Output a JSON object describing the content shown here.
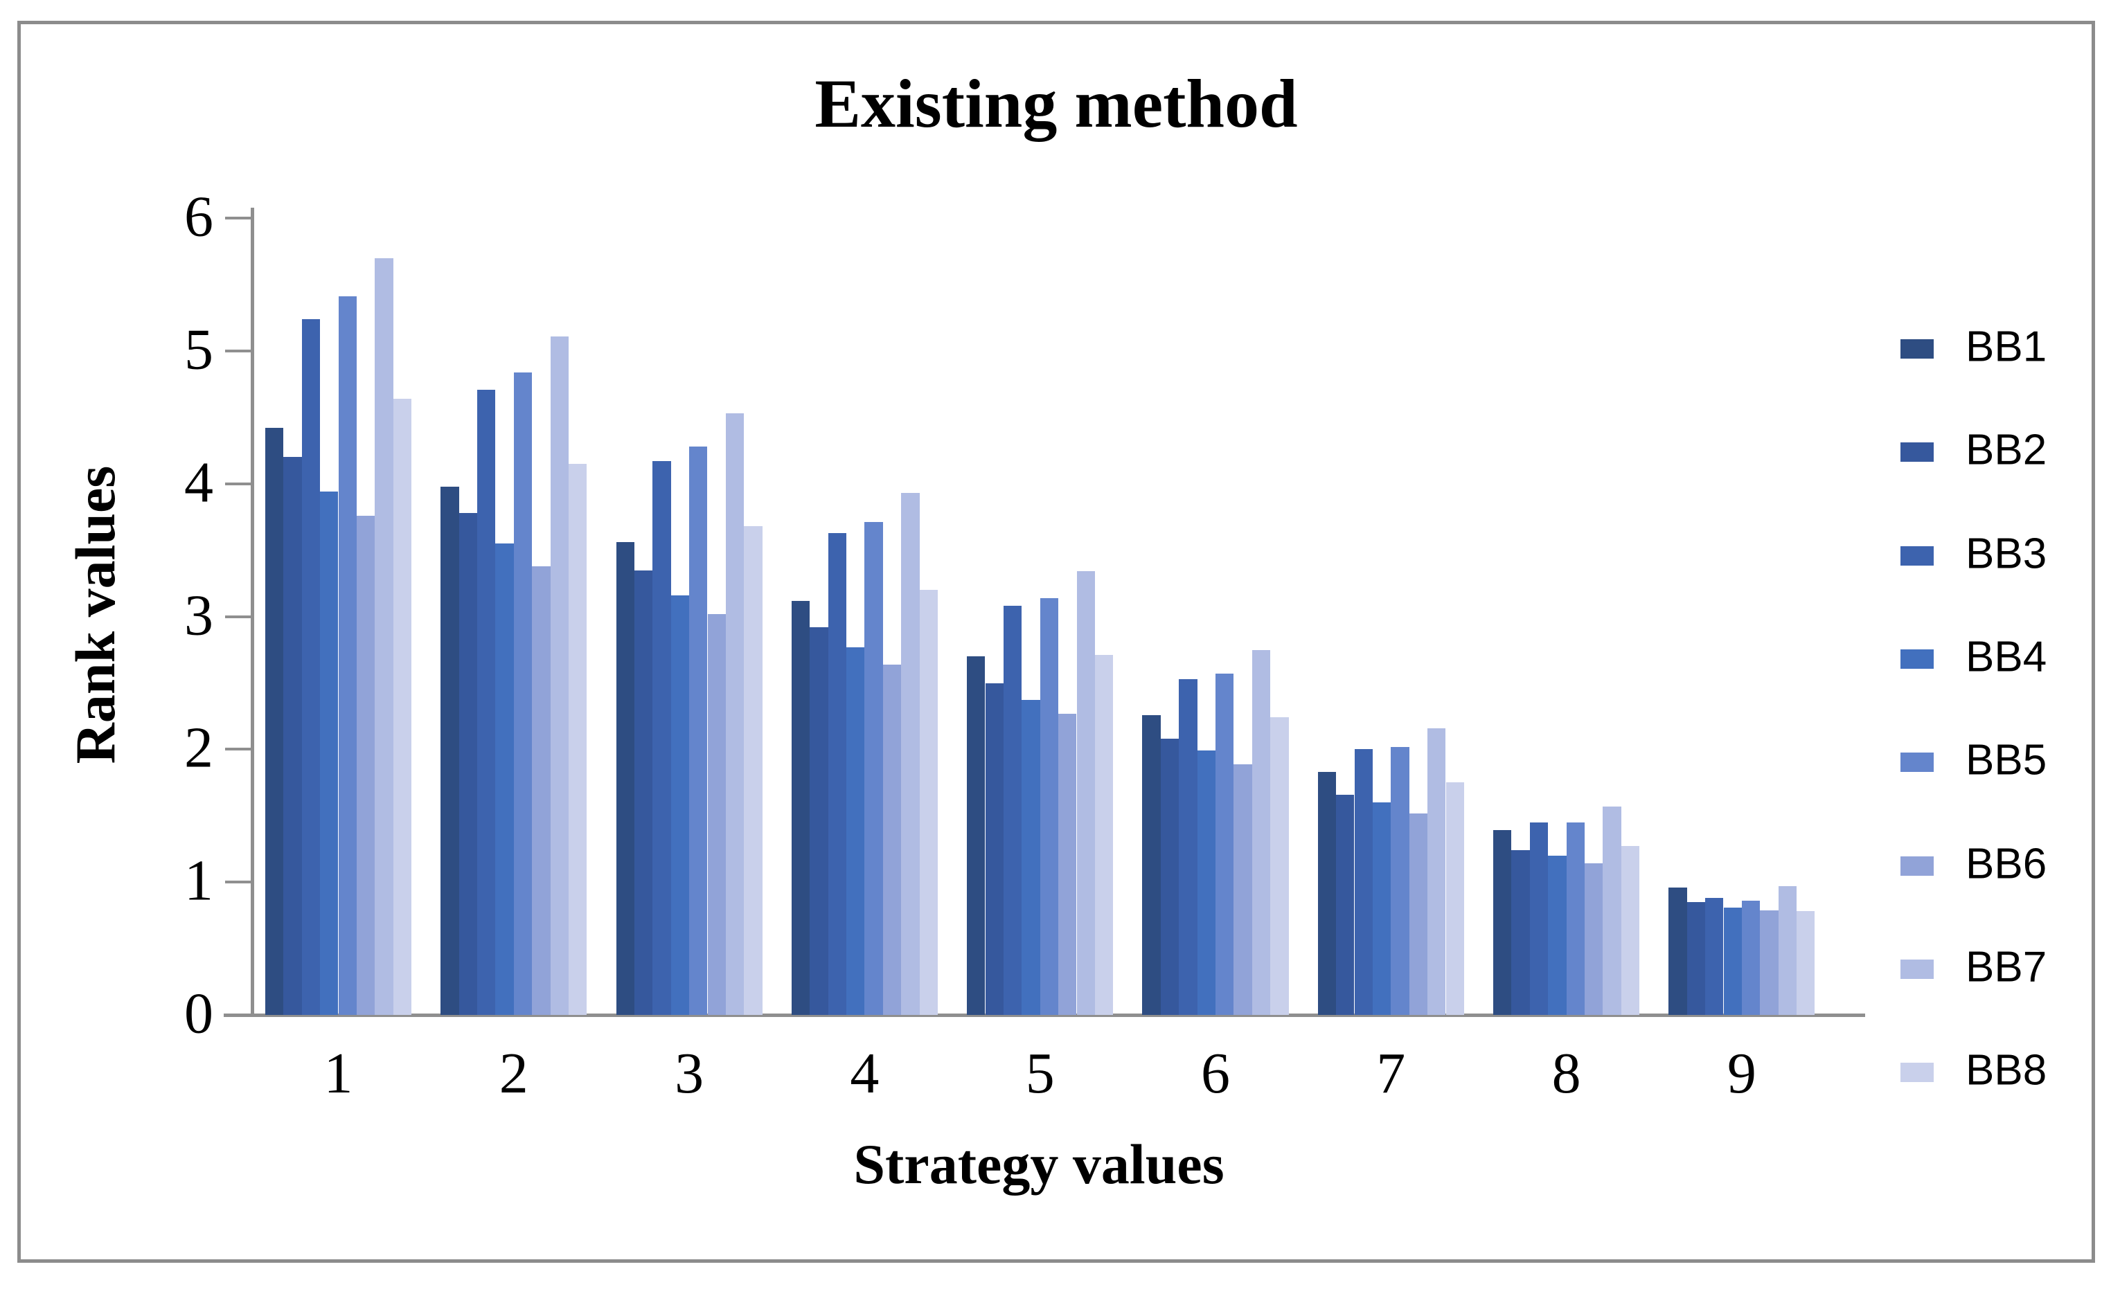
{
  "frame": {
    "border_color": "#8c8c8c",
    "axis_color": "#8f8f8f",
    "background": "#ffffff"
  },
  "chart_data": {
    "type": "bar",
    "title": "Existing method",
    "xlabel": "Strategy values",
    "ylabel": "Rank values",
    "categories": [
      "1",
      "2",
      "3",
      "4",
      "5",
      "6",
      "7",
      "8",
      "9"
    ],
    "yticks": [
      "0",
      "1",
      "2",
      "3",
      "4",
      "5",
      "6"
    ],
    "ylim": [
      0,
      6
    ],
    "grid": false,
    "legend_position": "right",
    "series": [
      {
        "name": "BB1",
        "color": "#2e4d82",
        "values": [
          4.42,
          3.98,
          3.56,
          3.12,
          2.7,
          2.26,
          1.83,
          1.39,
          0.96
        ]
      },
      {
        "name": "BB2",
        "color": "#36589d",
        "values": [
          4.2,
          3.78,
          3.35,
          2.92,
          2.5,
          2.08,
          1.66,
          1.24,
          0.85
        ]
      },
      {
        "name": "BB3",
        "color": "#3d63ae",
        "values": [
          5.24,
          4.71,
          4.17,
          3.63,
          3.08,
          2.53,
          2.0,
          1.45,
          0.88
        ]
      },
      {
        "name": "BB4",
        "color": "#4270be",
        "values": [
          3.94,
          3.55,
          3.16,
          2.77,
          2.37,
          1.99,
          1.6,
          1.2,
          0.81
        ]
      },
      {
        "name": "BB5",
        "color": "#6485cc",
        "values": [
          5.41,
          4.84,
          4.28,
          3.71,
          3.14,
          2.57,
          2.02,
          1.45,
          0.86
        ]
      },
      {
        "name": "BB6",
        "color": "#91a3d8",
        "values": [
          3.76,
          3.38,
          3.02,
          2.64,
          2.27,
          1.89,
          1.52,
          1.14,
          0.79
        ]
      },
      {
        "name": "BB7",
        "color": "#b0bce3",
        "values": [
          5.7,
          5.11,
          4.53,
          3.93,
          3.34,
          2.75,
          2.16,
          1.57,
          0.97
        ]
      },
      {
        "name": "BB8",
        "color": "#c9d0eb",
        "values": [
          4.64,
          4.15,
          3.68,
          3.2,
          2.71,
          2.24,
          1.75,
          1.27,
          0.78
        ]
      }
    ]
  }
}
